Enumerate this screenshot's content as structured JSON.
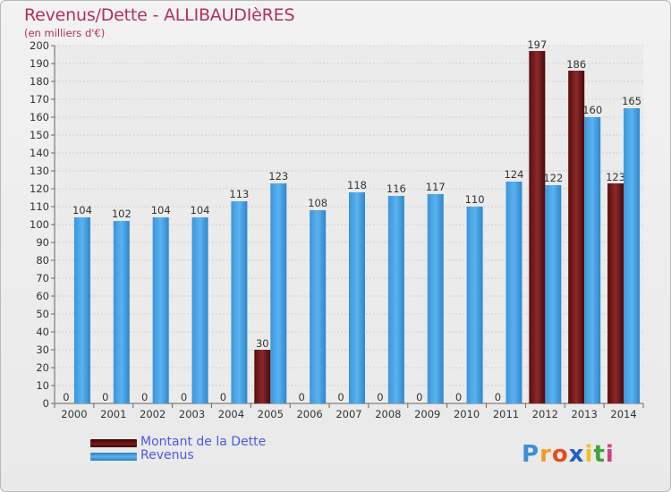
{
  "header": {
    "title": "Revenus/Dette - ALLIBAUDIèRES",
    "subtitle": "(en milliers d'€)"
  },
  "legend": {
    "items": [
      {
        "label": "Montant de la Dette",
        "color": "#6b0a0a"
      },
      {
        "label": "Revenus",
        "color": "#4aa3e4"
      }
    ]
  },
  "branding": {
    "logo_text": "Proxiti"
  },
  "colors": {
    "dette": "#7a1a1a",
    "revenus": "#4aa3e4",
    "title": "#b03060",
    "legend_text": "#4a5ae0"
  },
  "chart_data": {
    "type": "bar",
    "title": "Revenus/Dette - ALLIBAUDIèRES",
    "subtitle": "(en milliers d'€)",
    "categories": [
      "2000",
      "2001",
      "2002",
      "2003",
      "2004",
      "2005",
      "2006",
      "2007",
      "2008",
      "2009",
      "2010",
      "2011",
      "2012",
      "2013",
      "2014"
    ],
    "series": [
      {
        "name": "Montant de la Dette",
        "values": [
          0,
          0,
          0,
          0,
          0,
          30,
          0,
          0,
          0,
          0,
          0,
          0,
          197,
          186,
          123
        ]
      },
      {
        "name": "Revenus",
        "values": [
          104,
          102,
          104,
          104,
          113,
          123,
          108,
          118,
          116,
          117,
          110,
          124,
          122,
          160,
          165
        ]
      }
    ],
    "ylim": [
      0,
      200
    ],
    "yticks": [
      0,
      10,
      20,
      30,
      40,
      50,
      60,
      70,
      80,
      90,
      100,
      110,
      120,
      130,
      140,
      150,
      160,
      170,
      180,
      190,
      200
    ],
    "grid": true,
    "legend_position": "bottom-left"
  }
}
